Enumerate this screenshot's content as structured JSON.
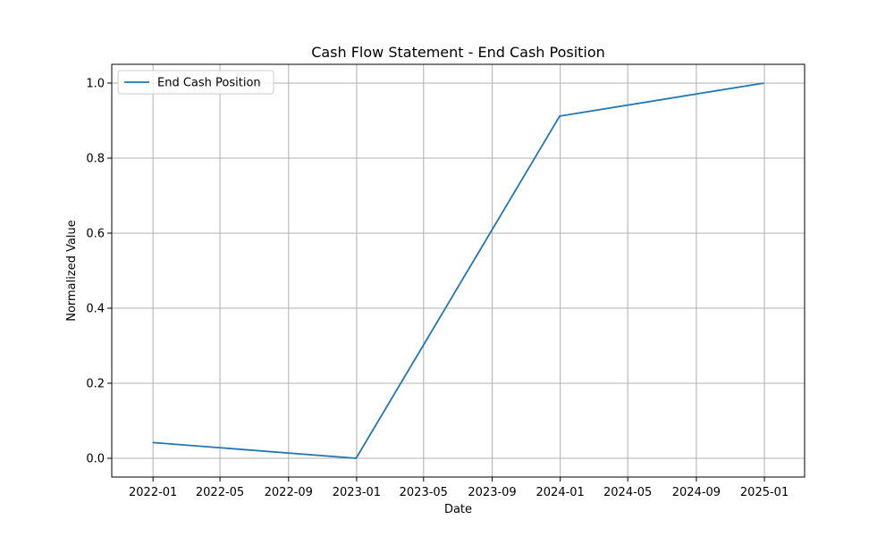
{
  "chart_data": {
    "type": "line",
    "title": "Cash Flow Statement - End Cash Position",
    "xlabel": "Date",
    "ylabel": "Normalized Value",
    "x_axis_type": "date",
    "xlim": [
      "2021-10-19",
      "2025-03-14"
    ],
    "ylim": [
      -0.05,
      1.05
    ],
    "x_ticks": [
      "2022-01",
      "2022-05",
      "2022-09",
      "2023-01",
      "2023-05",
      "2023-09",
      "2024-01",
      "2024-05",
      "2024-09",
      "2025-01"
    ],
    "y_ticks": [
      0.0,
      0.2,
      0.4,
      0.6,
      0.8,
      1.0
    ],
    "y_tick_labels": [
      "0.0",
      "0.2",
      "0.4",
      "0.6",
      "0.8",
      "1.0"
    ],
    "grid": true,
    "legend_position": "top-left",
    "series": [
      {
        "name": "End Cash Position",
        "color": "#1f77b4",
        "x": [
          "2021-12-31",
          "2022-12-31",
          "2023-12-31",
          "2024-12-31"
        ],
        "y": [
          0.042,
          0.0,
          0.912,
          1.0
        ]
      }
    ]
  }
}
